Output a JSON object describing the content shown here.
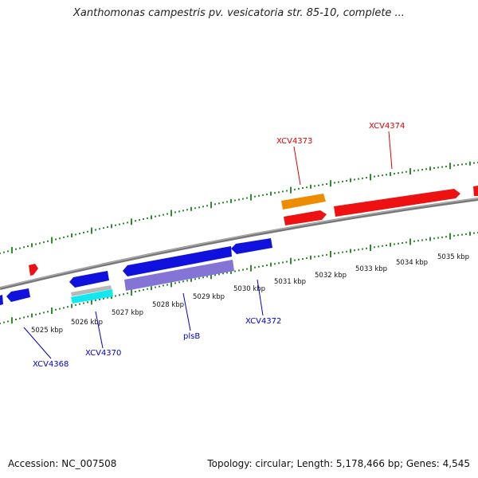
{
  "title": "Xanthomonas campestris pv. vesicatoria str. 85-10, complete ...",
  "footer": {
    "accession": "Accession: NC_007508",
    "summary": "Topology: circular; Length: 5,178,466 bp; Genes: 4,545"
  },
  "colors": {
    "backbone": "#8a8a8a",
    "tick": "#2e8b2e",
    "forward_gene": "#ee1111",
    "reverse_gene": "#1111dd",
    "rrna": "#ee8c00",
    "pseudo": "#8474d6",
    "cyan": "#11e8f0",
    "gray_feature": "#b8b8b8",
    "label_forward": "#dd0000",
    "label_reverse": "#0000cc"
  },
  "ticks": [
    {
      "label": "5025 kbp"
    },
    {
      "label": "5026 kbp"
    },
    {
      "label": "5027 kbp"
    },
    {
      "label": "5028 kbp"
    },
    {
      "label": "5029 kbp"
    },
    {
      "label": "5030 kbp"
    },
    {
      "label": "5031 kbp"
    },
    {
      "label": "5032 kbp"
    },
    {
      "label": "5033 kbp"
    },
    {
      "label": "5034 kbp"
    },
    {
      "label": "5035 kbp"
    }
  ],
  "gene_labels": {
    "xcv4373": "XCV4373",
    "xcv4374": "XCV4374",
    "xcv4368": "XCV4368",
    "xcv4370": "XCV4370",
    "plsb": "plsB",
    "xcv4372": "XCV4372"
  }
}
